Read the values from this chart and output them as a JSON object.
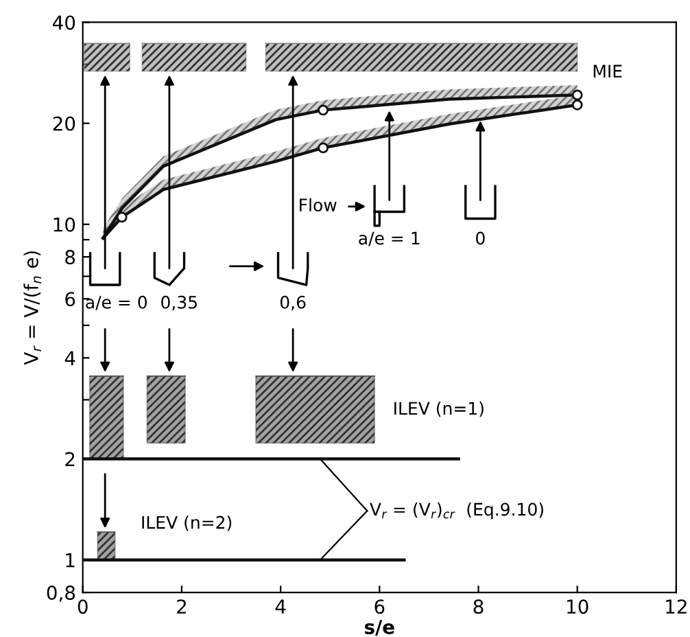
{
  "chart_data": {
    "type": "line",
    "xlabel": "s/e",
    "ylabel": "V$_{r}$ = V/(f$_{n}$ e)",
    "log": "y",
    "grid": false,
    "legend": false,
    "marker": "none",
    "xlim": [
      0,
      12
    ],
    "xticks": [
      0,
      2,
      4,
      6,
      8,
      10,
      12
    ],
    "ylim": [
      0.8,
      40
    ],
    "yticks": [
      {
        "value": 0.8,
        "label": "0,8"
      },
      1,
      2,
      {
        "value": 3,
        "label": null
      },
      4,
      {
        "value": 5,
        "label": null
      },
      6,
      {
        "value": 7,
        "label": null
      },
      8,
      {
        "value": 9,
        "label": null
      },
      10,
      20,
      {
        "value": 30,
        "label": null
      },
      40
    ],
    "series": [
      {
        "color": "#111111",
        "x": [
          0.41,
          0.8,
          1.63,
          3.9,
          4.86,
          7.4,
          10
        ],
        "values": [
          9.1,
          11.2,
          14.9,
          20.5,
          21.9,
          23.6,
          24.3
        ]
      },
      {
        "color": "#111111",
        "x": [
          0.41,
          0.79,
          1.63,
          3.9,
          4.86,
          7.4,
          10
        ],
        "values": [
          9.1,
          10.5,
          12.7,
          15.4,
          16.9,
          19.9,
          22.7
        ]
      },
      {
        "type": "scatter",
        "color": "#111111",
        "marker": "circle",
        "x": [
          0.79,
          4.86,
          4.86,
          10,
          10
        ],
        "values": [
          10.5,
          21.9,
          16.9,
          24.3,
          22.7
        ]
      },
      {
        "color": "#8a8a8a",
        "x": [
          0.03,
          0.95
        ],
        "values": [
          34.6,
          34.6
        ],
        "lower": [
          28.6,
          28.6
        ],
        "upper": [
          34.6,
          34.6
        ]
      },
      {
        "color": "#8a8a8a",
        "x": [
          1.2,
          3.3
        ],
        "values": [
          34.6,
          34.6
        ],
        "lower": [
          28.6,
          28.6
        ],
        "upper": [
          34.6,
          34.6
        ]
      },
      {
        "color": "#8a8a8a",
        "x": [
          3.7,
          10
        ],
        "values": [
          34.6,
          34.6
        ],
        "lower": [
          28.6,
          28.6
        ],
        "upper": [
          34.6,
          34.6
        ]
      },
      {
        "color": "#555555",
        "x": [
          0.14,
          0.82
        ],
        "values": [
          3.53,
          3.53
        ],
        "lower": [
          2.0,
          2.0
        ],
        "upper": [
          3.53,
          3.53
        ]
      },
      {
        "color": "#555555",
        "x": [
          1.3,
          2.07
        ],
        "values": [
          3.53,
          3.53
        ],
        "lower": [
          2.23,
          2.23
        ],
        "upper": [
          3.53,
          3.53
        ]
      },
      {
        "color": "#555555",
        "x": [
          3.5,
          5.9
        ],
        "values": [
          3.53,
          3.53
        ],
        "lower": [
          2.23,
          2.23
        ],
        "upper": [
          3.53,
          3.53
        ]
      },
      {
        "color": "#555555",
        "x": [
          0.3,
          0.65
        ],
        "values": [
          1.21,
          1.21
        ],
        "lower": [
          1.0,
          1.0
        ],
        "upper": [
          1.21,
          1.21
        ]
      },
      {
        "color": "#111111",
        "x": [
          0,
          7.6
        ],
        "values": [
          2,
          2
        ]
      },
      {
        "color": "#111111",
        "x": [
          0,
          6.5
        ],
        "values": [
          1,
          1
        ]
      }
    ],
    "annotations": [
      "MIE",
      "Flow",
      "a/e = 0",
      "0,35",
      "0,6",
      "a/e = 1",
      "0",
      "ILEV (n=1)",
      "ILEV (n=2)",
      "V$_{r}$ = (V$_{r}$)$_{cr}$  (Eq.9.10)"
    ]
  }
}
